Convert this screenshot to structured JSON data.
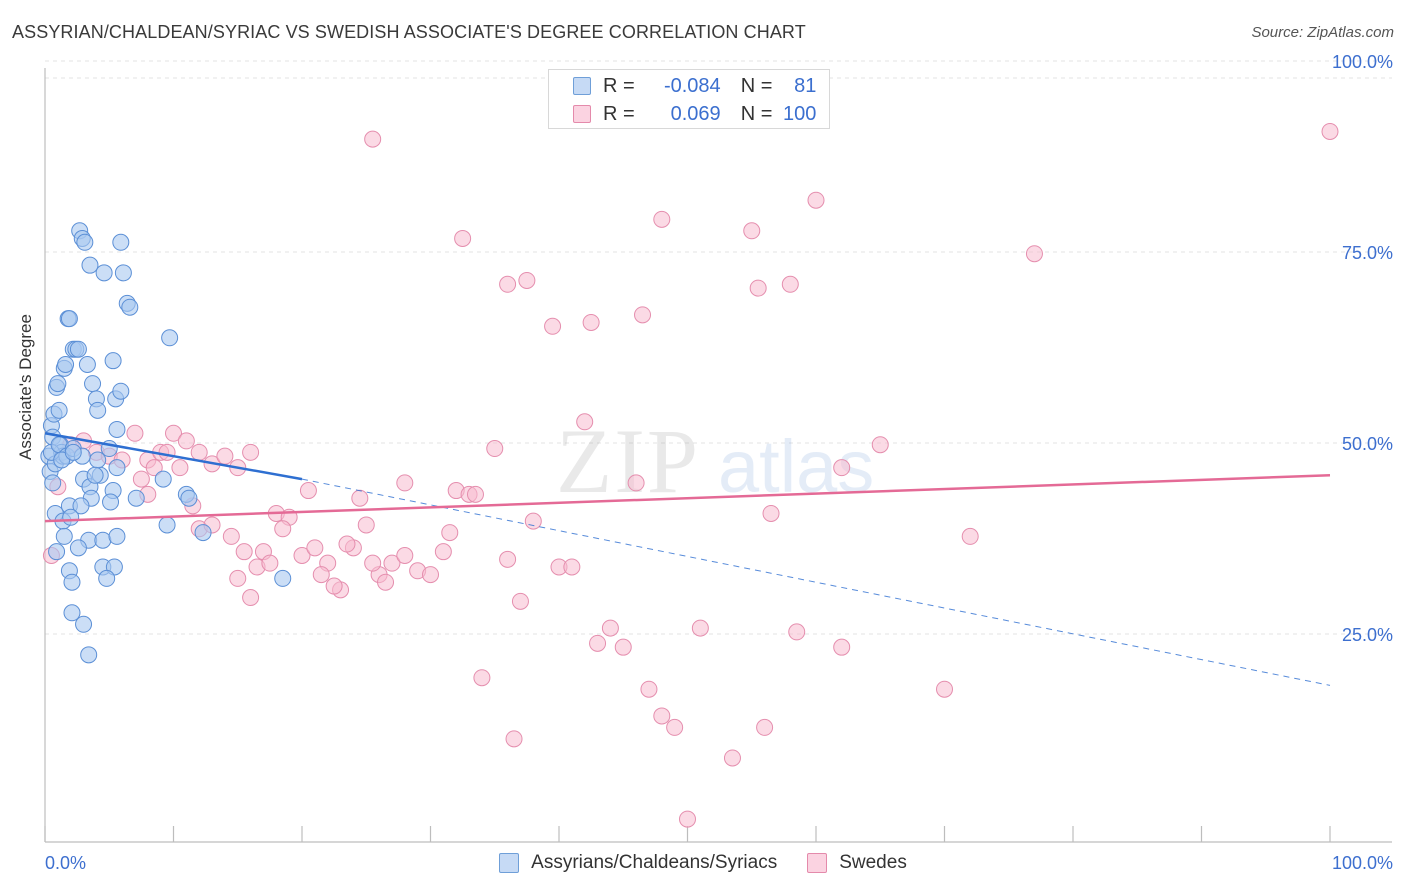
{
  "title": "ASSYRIAN/CHALDEAN/SYRIAC VS SWEDISH ASSOCIATE'S DEGREE CORRELATION CHART",
  "source": "Source: ZipAtlas.com",
  "watermark": {
    "zip": "ZIP",
    "atlas": "atlas"
  },
  "legend": {
    "r_label": "R =",
    "n_label": "N =",
    "rows": [
      {
        "r": "-0.084",
        "n": "81",
        "color": "#a8c8f0",
        "border": "#6f9fd8"
      },
      {
        "r": "0.069",
        "n": "100",
        "color": "#f7bcd0",
        "border": "#e48aab"
      }
    ]
  },
  "colors": {
    "blue_fill": "#a8c8f0",
    "blue_stroke": "#5b8fd6",
    "blue_line": "#2e6fd1",
    "pink_fill": "#f7bcd0",
    "pink_stroke": "#e58eae",
    "pink_line": "#e46a96",
    "axis_text": "#3d6fcf"
  },
  "chart_data": {
    "type": "scatter",
    "title": "ASSYRIAN/CHALDEAN/SYRIAC VS SWEDISH ASSOCIATE'S DEGREE CORRELATION CHART",
    "xlabel": "",
    "ylabel": "Associate's Degree",
    "xlim": [
      0,
      100
    ],
    "ylim": [
      0,
      100
    ],
    "x_tick_labels": [
      "0.0%",
      "100.0%"
    ],
    "y_tick_labels": [
      "100.0%",
      "75.0%",
      "50.0%",
      "25.0%"
    ],
    "y_ticks": [
      100,
      75,
      50,
      25
    ],
    "grid": true,
    "legend_position": "top-center",
    "series": [
      {
        "name": "Assyrians/Chaldeans/Syriacs",
        "r": -0.084,
        "n": 81,
        "trend": {
          "x": [
            0,
            20
          ],
          "y": [
            53.5,
            47.5
          ],
          "extended_to": [
            100,
            20.5
          ]
        },
        "points": [
          [
            0.3,
            50.5
          ],
          [
            0.4,
            48.5
          ],
          [
            0.5,
            54.5
          ],
          [
            0.6,
            53
          ],
          [
            0.7,
            56
          ],
          [
            0.8,
            49.5
          ],
          [
            0.9,
            59.5
          ],
          [
            1,
            60
          ],
          [
            1.1,
            56.5
          ],
          [
            1.2,
            52
          ],
          [
            1.3,
            51
          ],
          [
            1.4,
            50.5
          ],
          [
            1.5,
            62
          ],
          [
            1.6,
            62.5
          ],
          [
            1.8,
            68.5
          ],
          [
            1.9,
            68.5
          ],
          [
            2.2,
            64.5
          ],
          [
            2.4,
            64.5
          ],
          [
            2.6,
            64.5
          ],
          [
            2.7,
            80
          ],
          [
            2.9,
            79
          ],
          [
            3.1,
            78.5
          ],
          [
            3.5,
            75.5
          ],
          [
            4.6,
            74.5
          ],
          [
            5.9,
            78.5
          ],
          [
            6.1,
            74.5
          ],
          [
            6.4,
            70.5
          ],
          [
            6.6,
            70
          ],
          [
            9.7,
            66
          ],
          [
            3.3,
            62.5
          ],
          [
            3.7,
            60
          ],
          [
            4,
            58
          ],
          [
            4.1,
            56.5
          ],
          [
            5.5,
            58
          ],
          [
            5.9,
            59
          ],
          [
            5.3,
            63
          ],
          [
            5.6,
            54
          ],
          [
            0.5,
            51
          ],
          [
            1.1,
            52
          ],
          [
            1.7,
            50.5
          ],
          [
            2.2,
            51.5
          ],
          [
            3,
            47.5
          ],
          [
            3.5,
            46.5
          ],
          [
            4.3,
            48
          ],
          [
            4.1,
            50
          ],
          [
            5.6,
            49
          ],
          [
            5,
            51.5
          ],
          [
            3.6,
            45
          ],
          [
            5.3,
            46
          ],
          [
            0.8,
            43
          ],
          [
            1.4,
            42
          ],
          [
            1.9,
            44
          ],
          [
            2.8,
            44
          ],
          [
            3.4,
            39.5
          ],
          [
            4.5,
            39.5
          ],
          [
            5.6,
            40
          ],
          [
            7.1,
            45
          ],
          [
            9.2,
            47.5
          ],
          [
            11,
            45.5
          ],
          [
            11.2,
            45
          ],
          [
            12.3,
            40.5
          ],
          [
            1.5,
            40
          ],
          [
            2,
            42.5
          ],
          [
            2.6,
            38.5
          ],
          [
            0.9,
            38
          ],
          [
            1.9,
            35.5
          ],
          [
            2.1,
            34
          ],
          [
            4.5,
            36
          ],
          [
            5.4,
            36
          ],
          [
            4.8,
            34.5
          ],
          [
            9.5,
            41.5
          ],
          [
            18.5,
            34.5
          ],
          [
            2.1,
            30
          ],
          [
            3,
            28.5
          ],
          [
            3.4,
            24.5
          ],
          [
            2.9,
            50.5
          ],
          [
            3.9,
            48
          ],
          [
            5.1,
            44.5
          ],
          [
            0.6,
            47
          ],
          [
            1.3,
            50
          ],
          [
            2.2,
            51
          ]
        ]
      },
      {
        "name": "Swedes",
        "r": 0.069,
        "n": 100,
        "trend": {
          "x": [
            0,
            100
          ],
          "y": [
            42,
            48
          ]
        },
        "points": [
          [
            0.5,
            37.5
          ],
          [
            1,
            46.5
          ],
          [
            2,
            52
          ],
          [
            3,
            52.5
          ],
          [
            4,
            51
          ],
          [
            5,
            50.5
          ],
          [
            6,
            50
          ],
          [
            7,
            53.5
          ],
          [
            8,
            50
          ],
          [
            9,
            51
          ],
          [
            10,
            53.5
          ],
          [
            11,
            52.5
          ],
          [
            12,
            51
          ],
          [
            13,
            49.5
          ],
          [
            14,
            50.5
          ],
          [
            15,
            49
          ],
          [
            16,
            51
          ],
          [
            8.5,
            49
          ],
          [
            9.5,
            51
          ],
          [
            10.5,
            49
          ],
          [
            7.5,
            47.5
          ],
          [
            8,
            45.5
          ],
          [
            11.5,
            44
          ],
          [
            12,
            41
          ],
          [
            13,
            41.5
          ],
          [
            14.5,
            40
          ],
          [
            15.5,
            38
          ],
          [
            16.5,
            36
          ],
          [
            17,
            38
          ],
          [
            18,
            43
          ],
          [
            19,
            42.5
          ],
          [
            20,
            37.5
          ],
          [
            21,
            38.5
          ],
          [
            22,
            36.5
          ],
          [
            23,
            33
          ],
          [
            24,
            38.5
          ],
          [
            25,
            41.5
          ],
          [
            26,
            35
          ],
          [
            27,
            36.5
          ],
          [
            28,
            37.5
          ],
          [
            29,
            35.5
          ],
          [
            30,
            35
          ],
          [
            31,
            38
          ],
          [
            32,
            46
          ],
          [
            33,
            45.5
          ],
          [
            15,
            34.5
          ],
          [
            16,
            32
          ],
          [
            17.5,
            36.5
          ],
          [
            18.5,
            41
          ],
          [
            20.5,
            46
          ],
          [
            21.5,
            35
          ],
          [
            22.5,
            33.5
          ],
          [
            23.5,
            39
          ],
          [
            24.5,
            45
          ],
          [
            25.5,
            36.5
          ],
          [
            26.5,
            34
          ],
          [
            28,
            47
          ],
          [
            31.5,
            40.5
          ],
          [
            33.5,
            45.5
          ],
          [
            35,
            51.5
          ],
          [
            36,
            37
          ],
          [
            37,
            31.5
          ],
          [
            38,
            42
          ],
          [
            40,
            36
          ],
          [
            41,
            36
          ],
          [
            42,
            55
          ],
          [
            43,
            26
          ],
          [
            44,
            28
          ],
          [
            45,
            25.5
          ],
          [
            46,
            47
          ],
          [
            47,
            20
          ],
          [
            48,
            16.5
          ],
          [
            49,
            15
          ],
          [
            50,
            3
          ],
          [
            51,
            28
          ],
          [
            36.5,
            13.5
          ],
          [
            34,
            21.5
          ],
          [
            25.5,
            92
          ],
          [
            32.5,
            79
          ],
          [
            36,
            73
          ],
          [
            37.5,
            73.5
          ],
          [
            39.5,
            67.5
          ],
          [
            42.5,
            68
          ],
          [
            46.5,
            69
          ],
          [
            48,
            81.5
          ],
          [
            55,
            80
          ],
          [
            55.5,
            72.5
          ],
          [
            58,
            73
          ],
          [
            60,
            84
          ],
          [
            58.5,
            27.5
          ],
          [
            56,
            15
          ],
          [
            53.5,
            11
          ],
          [
            62,
            25.5
          ],
          [
            56.5,
            43
          ],
          [
            72,
            40
          ],
          [
            62,
            49
          ],
          [
            65,
            52
          ],
          [
            70,
            20
          ],
          [
            77,
            77
          ],
          [
            100,
            93
          ]
        ]
      }
    ]
  },
  "bottom_legend": [
    {
      "label": "Assyrians/Chaldeans/Syriacs"
    },
    {
      "label": "Swedes"
    }
  ]
}
